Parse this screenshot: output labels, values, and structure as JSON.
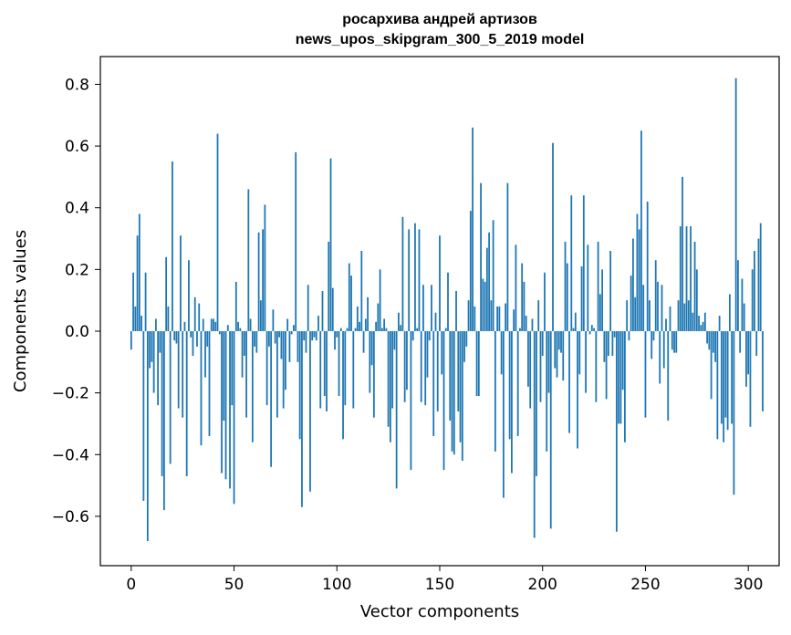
{
  "chart_data": {
    "type": "bar",
    "title_line1": "росархива андрей артизов",
    "title_line2": "news_upos_skipgram_300_5_2019 model",
    "xlabel": "Vector components",
    "ylabel": "Components values",
    "xlim": [
      -15,
      315
    ],
    "ylim": [
      -0.76,
      0.89
    ],
    "xticks": [
      0,
      50,
      100,
      150,
      200,
      250,
      300
    ],
    "yticks": [
      -0.6,
      -0.4,
      -0.2,
      0.0,
      0.2,
      0.4,
      0.6,
      0.8
    ],
    "ytick_labels": [
      "−0.6",
      "−0.4",
      "−0.2",
      "0.0",
      "0.2",
      "0.4",
      "0.6",
      "0.8"
    ],
    "bar_color": "#1f77b4",
    "x_start": 0,
    "values": [
      -0.06,
      0.19,
      0.08,
      0.31,
      0.38,
      0.05,
      -0.55,
      0.19,
      -0.68,
      -0.12,
      -0.1,
      -0.2,
      0.04,
      -0.24,
      -0.07,
      -0.47,
      -0.58,
      0.24,
      0.08,
      -0.43,
      0.55,
      -0.03,
      -0.04,
      -0.25,
      0.31,
      -0.28,
      0.03,
      -0.47,
      0.23,
      -0.02,
      -0.08,
      0.11,
      -0.05,
      0.09,
      -0.37,
      0.04,
      -0.15,
      -0.05,
      -0.34,
      0.04,
      0.04,
      0.03,
      0.64,
      -0.01,
      -0.46,
      -0.29,
      -0.48,
      0.02,
      -0.51,
      -0.24,
      -0.56,
      0.16,
      0.03,
      0.01,
      -0.15,
      -0.08,
      -0.28,
      0.46,
      0.04,
      -0.36,
      -0.05,
      -0.07,
      0.32,
      0.1,
      0.33,
      0.41,
      -0.24,
      -0.05,
      -0.44,
      0.07,
      -0.04,
      -0.28,
      -0.02,
      -0.09,
      -0.25,
      -0.19,
      0.04,
      -0.1,
      -0.01,
      0.02,
      0.58,
      -0.1,
      -0.35,
      -0.57,
      -0.03,
      -0.07,
      0.15,
      -0.52,
      -0.03,
      -0.02,
      -0.03,
      0.05,
      -0.25,
      0.13,
      -0.21,
      -0.26,
      0.29,
      0.56,
      0.14,
      -0.06,
      -0.02,
      -0.21,
      0.01,
      -0.35,
      -0.24,
      0.01,
      0.22,
      0.18,
      -0.25,
      0.01,
      0.08,
      0.03,
      0.26,
      -0.07,
      0.04,
      0.11,
      -0.2,
      -0.11,
      -0.28,
      0.03,
      0.09,
      0.2,
      0.01,
      0.04,
      0.01,
      -0.31,
      -0.36,
      -0.25,
      -0.06,
      -0.51,
      0.06,
      0.02,
      0.37,
      -0.23,
      -0.19,
      0.33,
      -0.45,
      -0.03,
      0.35,
      0.01,
      0.33,
      -0.23,
      0.15,
      -0.24,
      -0.15,
      -0.03,
      0.15,
      -0.34,
      0.06,
      -0.26,
      0.31,
      -0.14,
      -0.45,
      0.01,
      0.19,
      -0.29,
      -0.39,
      -0.4,
      0.13,
      -0.26,
      -0.36,
      -0.42,
      -0.1,
      -0.05,
      0.1,
      0.39,
      0.66,
      0.08,
      -0.21,
      -0.21,
      0.48,
      0.17,
      0.16,
      0.27,
      0.32,
      0.1,
      0.36,
      -0.39,
      0.08,
      0.08,
      -0.14,
      -0.54,
      0.09,
      0.48,
      -0.35,
      -0.46,
      0.07,
      0.28,
      -0.34,
      0.01,
      0.22,
      0.16,
      0.05,
      -0.18,
      -0.25,
      0.04,
      -0.67,
      -0.47,
      0.1,
      -0.23,
      -0.08,
      0.19,
      -0.39,
      -0.2,
      -0.64,
      0.61,
      -0.12,
      -0.15,
      -0.06,
      -0.07,
      -0.16,
      0.29,
      0.22,
      -0.33,
      0.44,
      0.01,
      0.06,
      -0.38,
      -0.14,
      0.21,
      0.44,
      -0.2,
      0.28,
      -0.01,
      0.02,
      0.01,
      -0.23,
      0.29,
      0.12,
      0.2,
      -0.1,
      -0.22,
      -0.08,
      0.26,
      -0.08,
      -0.02,
      -0.65,
      -0.3,
      -0.3,
      -0.19,
      -0.36,
      0.1,
      -0.03,
      0.18,
      0.3,
      0.11,
      0.38,
      0.33,
      0.65,
      0.15,
      -0.28,
      0.42,
      0.1,
      -0.09,
      -0.03,
      0.23,
      0.16,
      -0.17,
      0.15,
      -0.12,
      0.04,
      -0.29,
      0.08,
      -0.06,
      -0.07,
      -0.07,
      0.1,
      0.34,
      0.5,
      0.09,
      0.34,
      0.1,
      0.34,
      0.06,
      0.29,
      0.2,
      0.05,
      0.02,
      0.03,
      0.06,
      -0.04,
      -0.06,
      -0.22,
      -0.07,
      -0.1,
      -0.35,
      0.05,
      -0.3,
      -0.36,
      -0.28,
      -0.32,
      0.12,
      -0.3,
      -0.53,
      0.82,
      0.23,
      -0.07,
      0.17,
      0.09,
      -0.18,
      -0.14,
      -0.31,
      0.2,
      0.26,
      -0.08,
      0.3,
      0.35,
      -0.26
    ]
  }
}
